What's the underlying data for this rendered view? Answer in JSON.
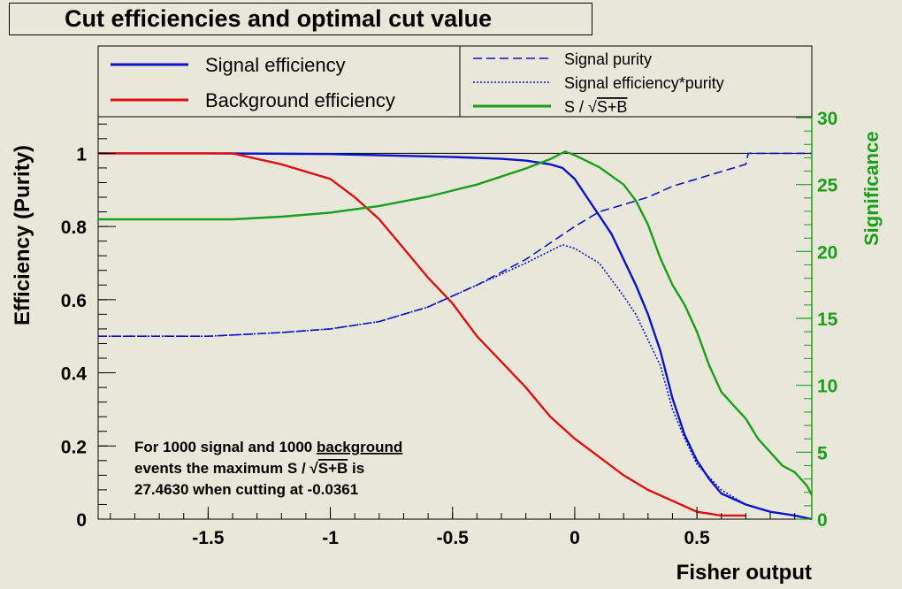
{
  "title": "Cut efficiencies and optimal cut value",
  "legend_left": [
    {
      "label": "Signal efficiency",
      "color": "#0a14c8",
      "style": "solid"
    },
    {
      "label": "Background efficiency",
      "color": "#e01010",
      "style": "solid"
    }
  ],
  "legend_right": [
    {
      "label": "Signal purity",
      "color": "#0a14c8",
      "style": "dashed"
    },
    {
      "label": "Signal efficiency*purity",
      "color": "#0a14c8",
      "style": "dotted"
    },
    {
      "label_prefix": "S / ",
      "label_sqrt": "S+B",
      "color": "#18a018",
      "style": "solid"
    }
  ],
  "annotation": {
    "line1_a": "For 1000 signal and 1000 ",
    "line1_b": "background",
    "line2_a": "events the maximum S / ",
    "line2_sqrt": "S+B",
    "line2_b": " is",
    "line3": "27.4630 when cutting at -0.0361"
  },
  "chart_data": {
    "type": "line",
    "xlabel": "Fisher output",
    "ylabel": "Efficiency (Purity)",
    "y2label": "Significance",
    "xlim": [
      -1.95,
      0.97
    ],
    "ylim": [
      0,
      1.1
    ],
    "y2lim": [
      0,
      30
    ],
    "xticks": [
      "-1.5",
      "-1",
      "-0.5",
      "0",
      "0.5"
    ],
    "xtick_values": [
      -1.5,
      -1,
      -0.5,
      0,
      0.5
    ],
    "yticks": [
      "0",
      "0.2",
      "0.4",
      "0.6",
      "0.8",
      "1"
    ],
    "ytick_values": [
      0,
      0.2,
      0.4,
      0.6,
      0.8,
      1
    ],
    "y2ticks": [
      "0",
      "5",
      "10",
      "15",
      "20",
      "25",
      "30"
    ],
    "y2tick_values": [
      0,
      5,
      10,
      15,
      20,
      25,
      30
    ],
    "series": [
      {
        "name": "Signal efficiency",
        "axis": "left",
        "color": "#0a14c8",
        "dash": "",
        "x": [
          -1.95,
          -1.5,
          -1.0,
          -0.5,
          -0.3,
          -0.2,
          -0.1,
          -0.05,
          0.0,
          0.05,
          0.1,
          0.15,
          0.2,
          0.25,
          0.3,
          0.35,
          0.4,
          0.45,
          0.5,
          0.55,
          0.6,
          0.7,
          0.8,
          0.9,
          0.97
        ],
        "y": [
          1.0,
          1.0,
          0.998,
          0.99,
          0.985,
          0.98,
          0.97,
          0.96,
          0.93,
          0.88,
          0.83,
          0.78,
          0.71,
          0.64,
          0.56,
          0.46,
          0.33,
          0.23,
          0.16,
          0.11,
          0.07,
          0.04,
          0.02,
          0.01,
          0.0
        ]
      },
      {
        "name": "Background efficiency",
        "axis": "left",
        "color": "#e01010",
        "dash": "",
        "x": [
          -1.95,
          -1.4,
          -1.2,
          -1.0,
          -0.9,
          -0.8,
          -0.7,
          -0.6,
          -0.5,
          -0.4,
          -0.3,
          -0.2,
          -0.1,
          0.0,
          0.1,
          0.2,
          0.3,
          0.4,
          0.5,
          0.6,
          0.7
        ],
        "y": [
          1.0,
          1.0,
          0.97,
          0.93,
          0.88,
          0.82,
          0.74,
          0.66,
          0.59,
          0.5,
          0.43,
          0.36,
          0.28,
          0.22,
          0.17,
          0.12,
          0.08,
          0.05,
          0.02,
          0.01,
          0.01
        ]
      },
      {
        "name": "Signal purity",
        "axis": "left",
        "color": "#0a14c8",
        "dash": "10,5",
        "x": [
          -1.95,
          -1.5,
          -1.2,
          -1.0,
          -0.8,
          -0.6,
          -0.4,
          -0.2,
          0.0,
          0.1,
          0.2,
          0.3,
          0.4,
          0.5,
          0.6,
          0.7,
          0.71,
          0.97
        ],
        "y": [
          0.5,
          0.5,
          0.51,
          0.52,
          0.54,
          0.58,
          0.64,
          0.71,
          0.8,
          0.84,
          0.86,
          0.88,
          0.91,
          0.93,
          0.95,
          0.97,
          1.0,
          1.0
        ]
      },
      {
        "name": "Signal efficiency*purity",
        "axis": "left",
        "color": "#0a14c8",
        "dash": "2,2",
        "x": [
          -1.95,
          -1.5,
          -1.2,
          -1.0,
          -0.8,
          -0.6,
          -0.4,
          -0.2,
          -0.05,
          0.0,
          0.1,
          0.2,
          0.25,
          0.3,
          0.35,
          0.4,
          0.45,
          0.5,
          0.6,
          0.7,
          0.8,
          0.9,
          0.97
        ],
        "y": [
          0.5,
          0.5,
          0.51,
          0.52,
          0.54,
          0.58,
          0.64,
          0.7,
          0.75,
          0.74,
          0.7,
          0.61,
          0.56,
          0.49,
          0.42,
          0.3,
          0.22,
          0.15,
          0.08,
          0.04,
          0.02,
          0.01,
          0.0
        ]
      },
      {
        "name": "S / √S+B",
        "axis": "right",
        "color": "#18a018",
        "dash": "",
        "x": [
          -1.95,
          -1.4,
          -1.2,
          -1.0,
          -0.8,
          -0.6,
          -0.4,
          -0.2,
          -0.1,
          -0.04,
          0.0,
          0.1,
          0.2,
          0.25,
          0.3,
          0.35,
          0.4,
          0.45,
          0.5,
          0.55,
          0.6,
          0.65,
          0.7,
          0.75,
          0.8,
          0.85,
          0.9,
          0.95,
          0.97
        ],
        "y": [
          22.4,
          22.4,
          22.6,
          22.9,
          23.4,
          24.1,
          25.0,
          26.2,
          26.9,
          27.46,
          27.2,
          26.3,
          25.0,
          23.8,
          22.0,
          19.5,
          17.5,
          16.0,
          14.0,
          11.5,
          9.5,
          8.5,
          7.5,
          6.0,
          5.0,
          4.0,
          3.5,
          2.5,
          1.8
        ]
      }
    ],
    "reference_lines": [
      {
        "y": 1.0,
        "color": "#000000"
      }
    ]
  }
}
